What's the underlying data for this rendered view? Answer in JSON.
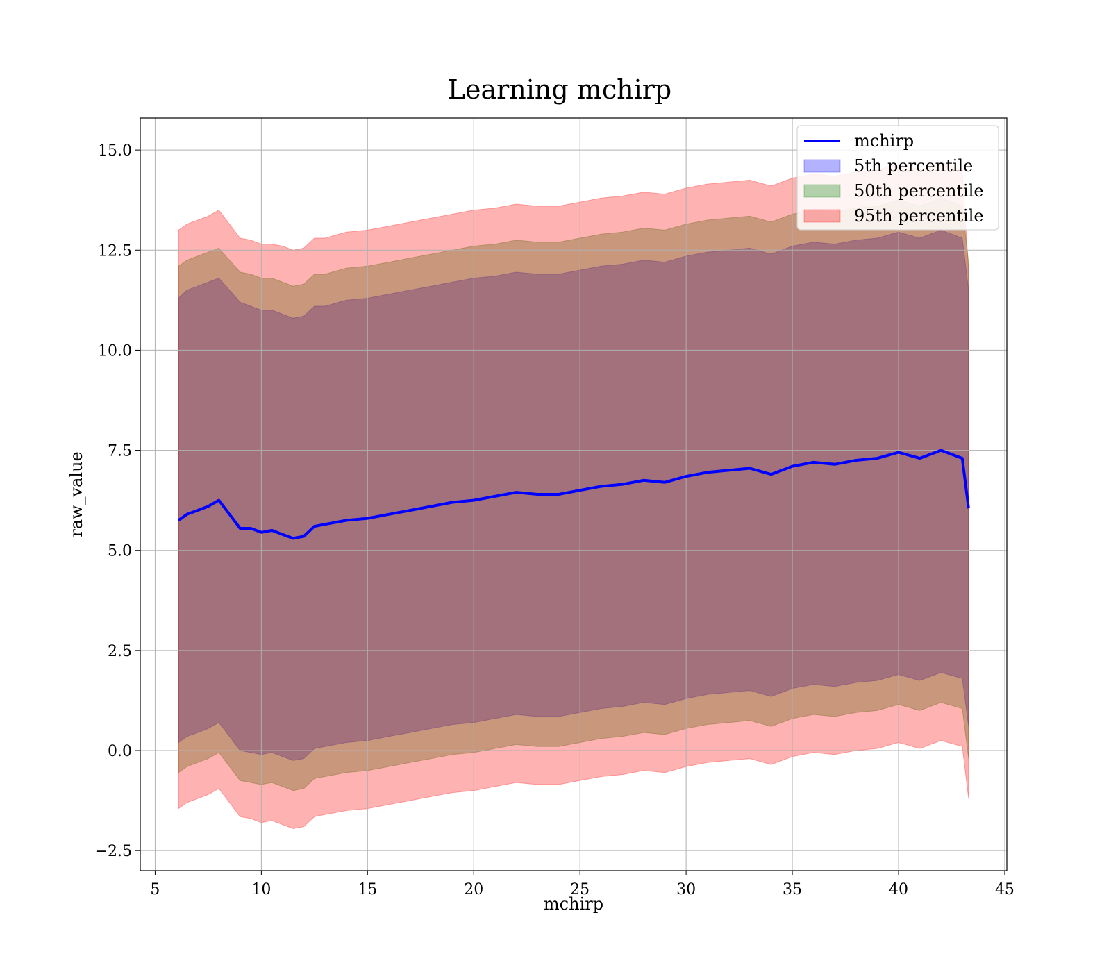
{
  "chart_data": {
    "type": "area",
    "title": "Learning mchirp",
    "xlabel": "mchirp",
    "ylabel": "raw_value",
    "xlim": [
      4.3,
      45.1
    ],
    "ylim": [
      -3.0,
      15.8
    ],
    "x_ticks": [
      5,
      10,
      15,
      20,
      25,
      30,
      35,
      40,
      45
    ],
    "x_tick_labels": [
      "5",
      "10",
      "15",
      "20",
      "25",
      "30",
      "35",
      "40",
      "45"
    ],
    "y_ticks": [
      -2.5,
      0.0,
      2.5,
      5.0,
      7.5,
      10.0,
      12.5,
      15.0
    ],
    "y_tick_labels": [
      "−2.5",
      "0.0",
      "2.5",
      "5.0",
      "7.5",
      "10.0",
      "12.5",
      "15.0"
    ],
    "grid": true,
    "legend_position": "top-right",
    "x": [
      6.1,
      6.5,
      7.0,
      7.5,
      8.0,
      8.5,
      9.0,
      9.5,
      10.0,
      10.5,
      11.0,
      11.5,
      12.0,
      12.5,
      13.0,
      14.0,
      15.0,
      16.0,
      17.0,
      18.0,
      19.0,
      20.0,
      21.0,
      22.0,
      23.0,
      24.0,
      25.0,
      26.0,
      27.0,
      28.0,
      29.0,
      30.0,
      31.0,
      32.0,
      33.0,
      34.0,
      35.0,
      36.0,
      37.0,
      38.0,
      39.0,
      40.0,
      41.0,
      42.0,
      43.0,
      43.3
    ],
    "series": [
      {
        "name": "mchirp",
        "kind": "line",
        "color": "#0000ff",
        "values": [
          5.75,
          5.9,
          6.0,
          6.1,
          6.25,
          5.9,
          5.55,
          5.55,
          5.45,
          5.5,
          5.4,
          5.3,
          5.35,
          5.6,
          5.65,
          5.75,
          5.8,
          5.9,
          6.0,
          6.1,
          6.2,
          6.25,
          6.35,
          6.45,
          6.4,
          6.4,
          6.5,
          6.6,
          6.65,
          6.75,
          6.7,
          6.85,
          6.95,
          7.0,
          7.05,
          6.9,
          7.1,
          7.2,
          7.15,
          7.25,
          7.3,
          7.45,
          7.3,
          7.5,
          7.3,
          6.05
        ]
      },
      {
        "name": "5th percentile",
        "kind": "band",
        "color": "#0000ff",
        "upper": [
          11.3,
          11.5,
          11.6,
          11.7,
          11.8,
          11.5,
          11.2,
          11.1,
          11.0,
          11.0,
          10.9,
          10.8,
          10.85,
          11.1,
          11.1,
          11.25,
          11.3,
          11.4,
          11.5,
          11.6,
          11.7,
          11.8,
          11.85,
          11.95,
          11.9,
          11.9,
          12.0,
          12.1,
          12.15,
          12.25,
          12.2,
          12.35,
          12.45,
          12.5,
          12.55,
          12.4,
          12.6,
          12.7,
          12.65,
          12.75,
          12.8,
          12.95,
          12.8,
          13.0,
          12.8,
          11.5
        ],
        "lower": [
          0.2,
          0.35,
          0.45,
          0.55,
          0.7,
          0.35,
          0.0,
          -0.05,
          -0.1,
          -0.05,
          -0.15,
          -0.25,
          -0.2,
          0.05,
          0.1,
          0.2,
          0.25,
          0.35,
          0.45,
          0.55,
          0.65,
          0.7,
          0.8,
          0.9,
          0.85,
          0.85,
          0.95,
          1.05,
          1.1,
          1.2,
          1.15,
          1.3,
          1.4,
          1.45,
          1.5,
          1.35,
          1.55,
          1.65,
          1.6,
          1.7,
          1.75,
          1.9,
          1.75,
          1.95,
          1.8,
          0.6
        ]
      },
      {
        "name": "50th percentile",
        "kind": "band",
        "color": "#008000",
        "upper": [
          12.1,
          12.25,
          12.35,
          12.45,
          12.55,
          12.25,
          11.95,
          11.9,
          11.8,
          11.8,
          11.7,
          11.6,
          11.65,
          11.9,
          11.9,
          12.05,
          12.1,
          12.2,
          12.3,
          12.4,
          12.5,
          12.6,
          12.65,
          12.75,
          12.7,
          12.7,
          12.8,
          12.9,
          12.95,
          13.05,
          13.0,
          13.15,
          13.25,
          13.3,
          13.35,
          13.2,
          13.4,
          13.5,
          13.45,
          13.55,
          13.6,
          13.75,
          13.6,
          13.8,
          13.6,
          12.2
        ],
        "lower": [
          -0.55,
          -0.4,
          -0.3,
          -0.2,
          -0.05,
          -0.4,
          -0.75,
          -0.8,
          -0.85,
          -0.8,
          -0.9,
          -1.0,
          -0.95,
          -0.7,
          -0.65,
          -0.55,
          -0.5,
          -0.4,
          -0.3,
          -0.2,
          -0.1,
          -0.05,
          0.05,
          0.15,
          0.1,
          0.1,
          0.2,
          0.3,
          0.35,
          0.45,
          0.4,
          0.55,
          0.65,
          0.7,
          0.75,
          0.6,
          0.8,
          0.9,
          0.85,
          0.95,
          1.0,
          1.15,
          1.0,
          1.2,
          1.05,
          -0.2
        ]
      },
      {
        "name": "95th percentile",
        "kind": "band",
        "color": "#ff0000",
        "upper": [
          13.0,
          13.15,
          13.25,
          13.35,
          13.5,
          13.15,
          12.8,
          12.75,
          12.65,
          12.65,
          12.6,
          12.5,
          12.55,
          12.8,
          12.8,
          12.95,
          13.0,
          13.1,
          13.2,
          13.3,
          13.4,
          13.5,
          13.55,
          13.65,
          13.6,
          13.6,
          13.7,
          13.8,
          13.85,
          13.95,
          13.9,
          14.05,
          14.15,
          14.2,
          14.25,
          14.1,
          14.3,
          14.4,
          14.35,
          14.45,
          14.5,
          14.65,
          14.5,
          14.7,
          14.5,
          12.0
        ],
        "lower": [
          -1.45,
          -1.3,
          -1.2,
          -1.1,
          -0.95,
          -1.3,
          -1.65,
          -1.7,
          -1.8,
          -1.75,
          -1.85,
          -1.95,
          -1.9,
          -1.65,
          -1.6,
          -1.5,
          -1.45,
          -1.35,
          -1.25,
          -1.15,
          -1.05,
          -1.0,
          -0.9,
          -0.8,
          -0.85,
          -0.85,
          -0.75,
          -0.65,
          -0.6,
          -0.5,
          -0.55,
          -0.4,
          -0.3,
          -0.25,
          -0.2,
          -0.35,
          -0.15,
          -0.05,
          -0.1,
          0.0,
          0.05,
          0.2,
          0.05,
          0.25,
          0.1,
          -1.2
        ]
      }
    ],
    "legend": [
      {
        "label": "mchirp",
        "kind": "line",
        "color": "#0000ff"
      },
      {
        "label": "5th percentile",
        "kind": "patch",
        "color": "#0000ff"
      },
      {
        "label": "50th percentile",
        "kind": "patch",
        "color": "#008000"
      },
      {
        "label": "95th percentile",
        "kind": "patch",
        "color": "#ff0000"
      }
    ]
  }
}
